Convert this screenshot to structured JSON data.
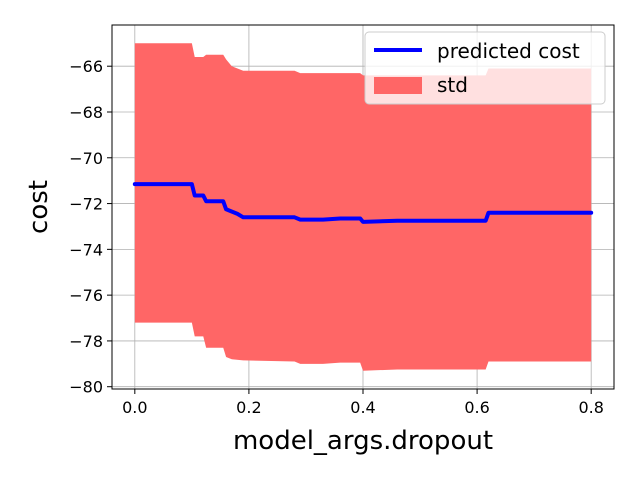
{
  "chart_data": {
    "type": "line",
    "title": "",
    "xlabel": "model_args.dropout",
    "ylabel": "cost",
    "xlim": [
      -0.04,
      0.84
    ],
    "ylim": [
      -80.1,
      -64.2
    ],
    "xticks": [
      0.0,
      0.2,
      0.4,
      0.6,
      0.8
    ],
    "xtick_labels": [
      "0.0",
      "0.2",
      "0.4",
      "0.6",
      "0.8"
    ],
    "yticks": [
      -66,
      -68,
      -70,
      -72,
      -74,
      -76,
      -78,
      -80
    ],
    "ytick_labels": [
      "−66",
      "−68",
      "−70",
      "−72",
      "−74",
      "−76",
      "−78",
      "−80"
    ],
    "grid": true,
    "legend_position": "top-right",
    "series": [
      {
        "name": "predicted cost",
        "color": "#0000ff",
        "x": [
          0.0,
          0.1,
          0.105,
          0.12,
          0.125,
          0.155,
          0.16,
          0.18,
          0.19,
          0.28,
          0.29,
          0.33,
          0.36,
          0.395,
          0.4,
          0.46,
          0.615,
          0.62,
          0.8
        ],
        "y": [
          -71.15,
          -71.15,
          -71.65,
          -71.65,
          -71.9,
          -71.9,
          -72.25,
          -72.45,
          -72.6,
          -72.6,
          -72.7,
          -72.7,
          -72.65,
          -72.65,
          -72.8,
          -72.75,
          -72.75,
          -72.4,
          -72.4
        ]
      }
    ],
    "band": {
      "name": "std",
      "color": "#ff6666",
      "x": [
        0.0,
        0.05,
        0.1,
        0.105,
        0.12,
        0.125,
        0.155,
        0.16,
        0.17,
        0.19,
        0.28,
        0.29,
        0.33,
        0.36,
        0.395,
        0.4,
        0.46,
        0.615,
        0.62,
        0.8
      ],
      "upper": [
        -65.0,
        -65.0,
        -65.0,
        -65.6,
        -65.6,
        -65.5,
        -65.5,
        -65.7,
        -66.0,
        -66.2,
        -66.2,
        -66.3,
        -66.3,
        -66.3,
        -66.3,
        -66.4,
        -66.4,
        -66.4,
        -66.1,
        -66.1
      ],
      "lower": [
        -77.2,
        -77.2,
        -77.2,
        -77.8,
        -77.8,
        -78.3,
        -78.3,
        -78.7,
        -78.8,
        -78.85,
        -78.9,
        -79.0,
        -79.0,
        -78.95,
        -78.95,
        -79.3,
        -79.25,
        -79.25,
        -78.9,
        -78.9
      ]
    }
  }
}
